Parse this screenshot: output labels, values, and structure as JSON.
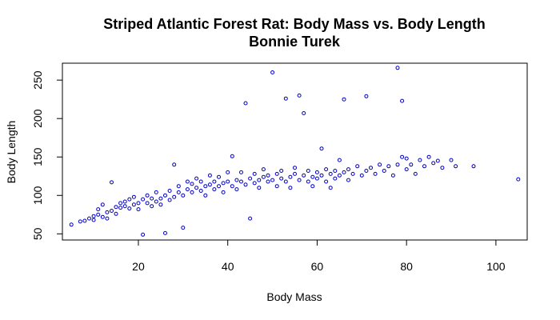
{
  "chart_data": {
    "type": "scatter",
    "title": "Striped Atlantic Forest Rat: Body Mass vs. Body Length",
    "subtitle": "Bonnie Turek",
    "xlabel": "Body Mass",
    "ylabel": "Body Length",
    "xlim": [
      3,
      107
    ],
    "ylim": [
      42,
      272
    ],
    "x_ticks": [
      20,
      40,
      60,
      80,
      100
    ],
    "y_ticks": [
      50,
      100,
      150,
      200,
      250
    ],
    "point_color": "#0000cc",
    "grid": false,
    "legend": "none",
    "points": [
      [
        5,
        62
      ],
      [
        7,
        66
      ],
      [
        8,
        67
      ],
      [
        9,
        70
      ],
      [
        10,
        73
      ],
      [
        10,
        68
      ],
      [
        11,
        75
      ],
      [
        11,
        82
      ],
      [
        12,
        72
      ],
      [
        12,
        88
      ],
      [
        13,
        70
      ],
      [
        13,
        78
      ],
      [
        14,
        117
      ],
      [
        14,
        80
      ],
      [
        15,
        85
      ],
      [
        15,
        76
      ],
      [
        16,
        84
      ],
      [
        16,
        90
      ],
      [
        17,
        86
      ],
      [
        17,
        92
      ],
      [
        18,
        83
      ],
      [
        18,
        95
      ],
      [
        19,
        88
      ],
      [
        19,
        98
      ],
      [
        20,
        90
      ],
      [
        20,
        82
      ],
      [
        21,
        49
      ],
      [
        21,
        95
      ],
      [
        22,
        90
      ],
      [
        22,
        100
      ],
      [
        23,
        86
      ],
      [
        23,
        96
      ],
      [
        24,
        92
      ],
      [
        24,
        104
      ],
      [
        25,
        96
      ],
      [
        25,
        88
      ],
      [
        26,
        51
      ],
      [
        26,
        100
      ],
      [
        27,
        94
      ],
      [
        27,
        106
      ],
      [
        28,
        98
      ],
      [
        28,
        140
      ],
      [
        29,
        104
      ],
      [
        29,
        112
      ],
      [
        30,
        100
      ],
      [
        30,
        58
      ],
      [
        31,
        108
      ],
      [
        31,
        118
      ],
      [
        32,
        104
      ],
      [
        32,
        115
      ],
      [
        33,
        110
      ],
      [
        33,
        122
      ],
      [
        34,
        106
      ],
      [
        34,
        118
      ],
      [
        35,
        112
      ],
      [
        35,
        100
      ],
      [
        36,
        114
      ],
      [
        36,
        126
      ],
      [
        37,
        108
      ],
      [
        37,
        118
      ],
      [
        38,
        112
      ],
      [
        38,
        124
      ],
      [
        39,
        116
      ],
      [
        39,
        104
      ],
      [
        40,
        118
      ],
      [
        40,
        130
      ],
      [
        41,
        151
      ],
      [
        41,
        112
      ],
      [
        42,
        120
      ],
      [
        42,
        108
      ],
      [
        43,
        118
      ],
      [
        43,
        130
      ],
      [
        44,
        220
      ],
      [
        44,
        114
      ],
      [
        45,
        70
      ],
      [
        45,
        122
      ],
      [
        46,
        116
      ],
      [
        46,
        128
      ],
      [
        47,
        120
      ],
      [
        47,
        110
      ],
      [
        48,
        124
      ],
      [
        48,
        134
      ],
      [
        49,
        118
      ],
      [
        49,
        126
      ],
      [
        50,
        260
      ],
      [
        50,
        120
      ],
      [
        51,
        112
      ],
      [
        51,
        128
      ],
      [
        52,
        122
      ],
      [
        52,
        132
      ],
      [
        53,
        226
      ],
      [
        53,
        118
      ],
      [
        54,
        124
      ],
      [
        54,
        110
      ],
      [
        55,
        128
      ],
      [
        55,
        136
      ],
      [
        56,
        230
      ],
      [
        56,
        120
      ],
      [
        57,
        207
      ],
      [
        57,
        126
      ],
      [
        58,
        118
      ],
      [
        58,
        132
      ],
      [
        59,
        124
      ],
      [
        59,
        112
      ],
      [
        60,
        130
      ],
      [
        60,
        122
      ],
      [
        61,
        126
      ],
      [
        61,
        161
      ],
      [
        62,
        118
      ],
      [
        62,
        134
      ],
      [
        63,
        128
      ],
      [
        63,
        110
      ],
      [
        64,
        132
      ],
      [
        64,
        122
      ],
      [
        65,
        146
      ],
      [
        65,
        126
      ],
      [
        66,
        225
      ],
      [
        66,
        130
      ],
      [
        67,
        120
      ],
      [
        67,
        134
      ],
      [
        68,
        128
      ],
      [
        69,
        138
      ],
      [
        70,
        126
      ],
      [
        71,
        229
      ],
      [
        71,
        132
      ],
      [
        72,
        136
      ],
      [
        73,
        128
      ],
      [
        74,
        140
      ],
      [
        75,
        132
      ],
      [
        76,
        138
      ],
      [
        77,
        126
      ],
      [
        78,
        266
      ],
      [
        78,
        140
      ],
      [
        79,
        223
      ],
      [
        79,
        150
      ],
      [
        80,
        148
      ],
      [
        80,
        134
      ],
      [
        81,
        140
      ],
      [
        82,
        128
      ],
      [
        83,
        146
      ],
      [
        84,
        138
      ],
      [
        85,
        150
      ],
      [
        86,
        142
      ],
      [
        87,
        145
      ],
      [
        88,
        136
      ],
      [
        90,
        146
      ],
      [
        91,
        138
      ],
      [
        95,
        138
      ],
      [
        105,
        121
      ]
    ]
  }
}
